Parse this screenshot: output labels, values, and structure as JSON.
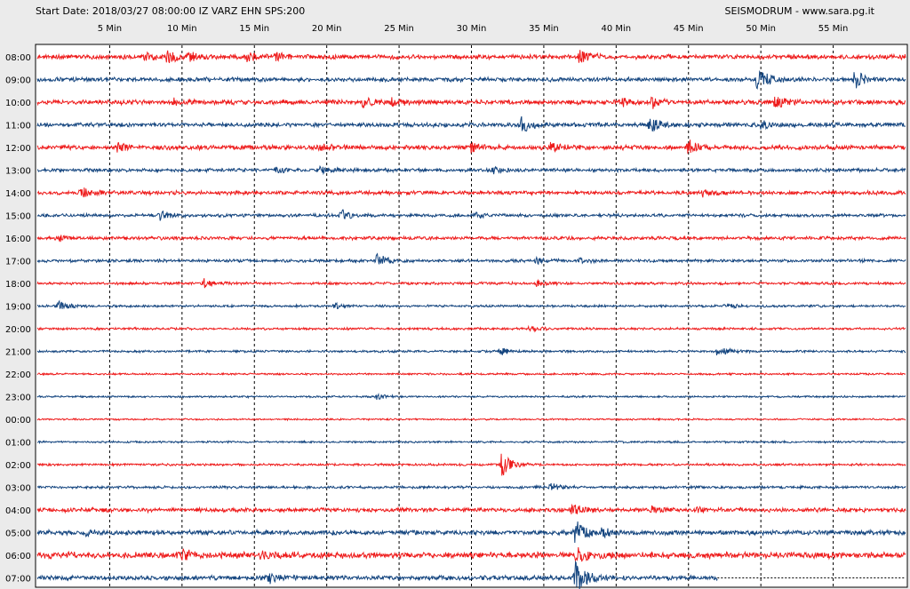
{
  "header": {
    "title": "Start Date: 2018/03/27 08:00:00 IZ VARZ EHN SPS:200",
    "source": "SEISMODRUM - www.sara.pg.it"
  },
  "chart_data": {
    "type": "line",
    "x_unit": "Min",
    "x_range": [
      0,
      60
    ],
    "x_ticks": [
      "5 Min",
      "10 Min",
      "15 Min",
      "20 Min",
      "25 Min",
      "30 Min",
      "35 Min",
      "40 Min",
      "45 Min",
      "50 Min",
      "55 Min"
    ],
    "x_tick_values": [
      5,
      10,
      15,
      20,
      25,
      30,
      35,
      40,
      45,
      50,
      55
    ],
    "grid": true,
    "colors": {
      "odd": "#ee1b1b",
      "even": "#14457f",
      "grid": "#000000",
      "background": "#ffffff"
    },
    "rows": [
      {
        "label": "08:00",
        "color": "#ee1b1b",
        "noise": 0.6,
        "events": [
          [
            7.5,
            5
          ],
          [
            9,
            6
          ],
          [
            10.5,
            5
          ],
          [
            14.5,
            4
          ],
          [
            16.5,
            3.5
          ],
          [
            37.5,
            7
          ]
        ]
      },
      {
        "label": "09:00",
        "color": "#14457f",
        "noise": 0.55,
        "events": [
          [
            49.8,
            14
          ],
          [
            56.5,
            9
          ]
        ]
      },
      {
        "label": "10:00",
        "color": "#ee1b1b",
        "noise": 0.6,
        "events": [
          [
            9.5,
            3
          ],
          [
            22.5,
            5
          ],
          [
            24.5,
            3.5
          ],
          [
            40.5,
            4
          ],
          [
            42.5,
            5
          ],
          [
            51,
            6
          ]
        ]
      },
      {
        "label": "11:00",
        "color": "#14457f",
        "noise": 0.55,
        "events": [
          [
            33.5,
            9
          ],
          [
            42.3,
            9
          ],
          [
            50,
            4
          ]
        ]
      },
      {
        "label": "12:00",
        "color": "#ee1b1b",
        "noise": 0.6,
        "events": [
          [
            5.5,
            4
          ],
          [
            19.5,
            5
          ],
          [
            30,
            5
          ],
          [
            35.5,
            5
          ],
          [
            45,
            8
          ]
        ]
      },
      {
        "label": "13:00",
        "color": "#14457f",
        "noise": 0.45,
        "events": [
          [
            16.5,
            3
          ],
          [
            19.5,
            4
          ],
          [
            31.5,
            3
          ]
        ]
      },
      {
        "label": "14:00",
        "color": "#ee1b1b",
        "noise": 0.5,
        "events": [
          [
            3,
            8
          ],
          [
            46,
            3
          ]
        ]
      },
      {
        "label": "15:00",
        "color": "#14457f",
        "noise": 0.4,
        "events": [
          [
            8.5,
            6
          ],
          [
            21,
            6
          ],
          [
            30.3,
            3
          ]
        ]
      },
      {
        "label": "16:00",
        "color": "#ee1b1b",
        "noise": 0.45,
        "events": [
          [
            1.5,
            3
          ]
        ]
      },
      {
        "label": "17:00",
        "color": "#14457f",
        "noise": 0.4,
        "events": [
          [
            23.5,
            7
          ],
          [
            34.5,
            3
          ],
          [
            37.5,
            3
          ]
        ]
      },
      {
        "label": "18:00",
        "color": "#ee1b1b",
        "noise": 0.35,
        "events": [
          [
            11.5,
            5
          ],
          [
            34.5,
            3
          ]
        ]
      },
      {
        "label": "19:00",
        "color": "#14457f",
        "noise": 0.3,
        "events": [
          [
            1.5,
            6
          ],
          [
            20.5,
            3
          ],
          [
            47.5,
            3
          ]
        ]
      },
      {
        "label": "20:00",
        "color": "#ee1b1b",
        "noise": 0.3,
        "events": [
          [
            34,
            3
          ]
        ]
      },
      {
        "label": "21:00",
        "color": "#14457f",
        "noise": 0.3,
        "events": [
          [
            32,
            4
          ],
          [
            47,
            9
          ]
        ]
      },
      {
        "label": "22:00",
        "color": "#ee1b1b",
        "noise": 0.25,
        "events": []
      },
      {
        "label": "23:00",
        "color": "#14457f",
        "noise": 0.25,
        "events": [
          [
            23.5,
            3
          ]
        ]
      },
      {
        "label": "00:00",
        "color": "#ee1b1b",
        "noise": 0.22,
        "events": []
      },
      {
        "label": "01:00",
        "color": "#14457f",
        "noise": 0.25,
        "events": []
      },
      {
        "label": "02:00",
        "color": "#ee1b1b",
        "noise": 0.3,
        "events": [
          [
            32.1,
            13
          ]
        ]
      },
      {
        "label": "03:00",
        "color": "#14457f",
        "noise": 0.35,
        "events": [
          [
            35.5,
            4
          ]
        ]
      },
      {
        "label": "04:00",
        "color": "#ee1b1b",
        "noise": 0.55,
        "events": [
          [
            37,
            7
          ],
          [
            42.5,
            3
          ],
          [
            45.5,
            3
          ]
        ]
      },
      {
        "label": "05:00",
        "color": "#14457f",
        "noise": 0.6,
        "events": [
          [
            3.3,
            3
          ],
          [
            37.2,
            14
          ],
          [
            39,
            5
          ]
        ]
      },
      {
        "label": "06:00",
        "color": "#ee1b1b",
        "noise": 0.8,
        "events": [
          [
            10,
            5
          ],
          [
            15.5,
            4
          ],
          [
            37.2,
            10
          ]
        ]
      },
      {
        "label": "07:00",
        "color": "#14457f",
        "noise": 0.6,
        "end_min": 47,
        "events": [
          [
            16,
            6
          ],
          [
            37.2,
            22
          ]
        ]
      }
    ]
  }
}
